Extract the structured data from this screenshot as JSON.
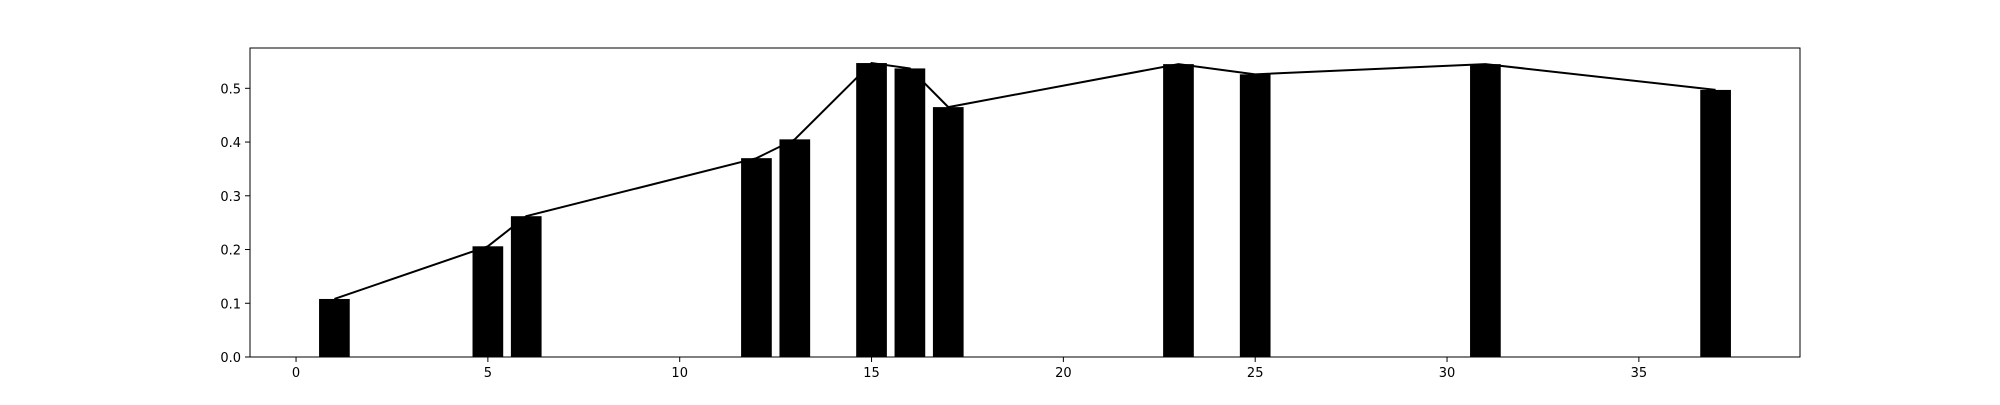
{
  "chart_data": {
    "type": "bar",
    "title": "",
    "xlabel": "",
    "ylabel": "",
    "xlim": [
      -1.2,
      39.2
    ],
    "ylim": [
      0,
      0.575
    ],
    "grid": false,
    "bar_width": 0.8,
    "colors": {
      "bars": "#000000",
      "line": "#000000",
      "axes": "#000000",
      "background": "#ffffff"
    },
    "x_ticks": [
      0,
      5,
      10,
      15,
      20,
      25,
      30,
      35
    ],
    "y_ticks": [
      0.0,
      0.1,
      0.2,
      0.3,
      0.4,
      0.5
    ],
    "x_tick_labels": [
      "0",
      "5",
      "10",
      "15",
      "20",
      "25",
      "30",
      "35"
    ],
    "y_tick_labels": [
      "0.0",
      "0.1",
      "0.2",
      "0.3",
      "0.4",
      "0.5"
    ],
    "x": [
      1,
      5,
      6,
      12,
      13,
      15,
      16,
      17,
      23,
      25,
      31,
      37
    ],
    "values": [
      0.108,
      0.206,
      0.262,
      0.37,
      0.405,
      0.547,
      0.537,
      0.465,
      0.545,
      0.526,
      0.545,
      0.497
    ],
    "overlay_line": true
  }
}
